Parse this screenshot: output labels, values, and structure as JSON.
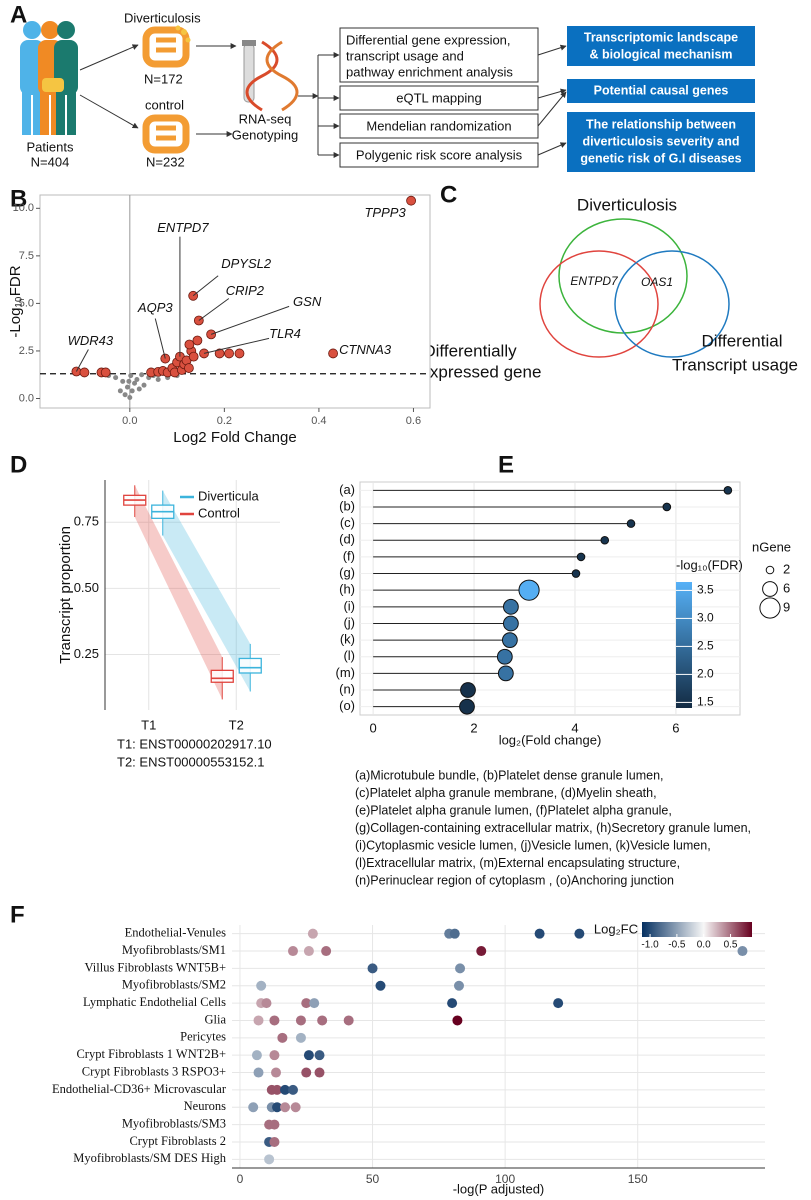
{
  "panel_labels": [
    "A",
    "B",
    "C",
    "D",
    "E",
    "F"
  ],
  "workflow": {
    "patients": {
      "label": "Patients",
      "n": "N=404"
    },
    "groups": [
      {
        "label": "Diverticulosis",
        "n": "N=172"
      },
      {
        "label": "control",
        "n": "N=232"
      }
    ],
    "assay": [
      "RNA-seq",
      "Genotyping"
    ],
    "analyses": [
      [
        "Differential gene expression,",
        "transcript usage and",
        "pathway enrichment analysis"
      ],
      [
        "eQTL mapping"
      ],
      [
        "Mendelian randomization"
      ],
      [
        "Polygenic risk score analysis"
      ]
    ],
    "outcomes": [
      [
        "Transcriptomic landscape",
        "& biological mechanism"
      ],
      [
        "Potential causal genes"
      ],
      [
        "The relationship between",
        "diverticulosis severity and",
        "genetic risk of G.I diseases"
      ]
    ]
  },
  "venn": {
    "sets": [
      [
        "Diverticulosis"
      ],
      [
        "Differentially",
        "Expressed gene"
      ],
      [
        "Differential",
        "Transcript usage"
      ]
    ],
    "genes": [
      "ENTPD7",
      "OAS1"
    ]
  },
  "chart_data": [
    {
      "type": "volcano",
      "xlabel": "Log2 Fold Change",
      "ylabel": "-Log₁₀FDR",
      "xlim": [
        -0.19,
        0.635
      ],
      "ylim": [
        -0.5,
        10.7
      ],
      "xticks": [
        {
          "value": 0,
          "label": "0.0"
        },
        0.2,
        0.4,
        0.6
      ],
      "yticks": [
        {
          "value": 0,
          "label": "0.0"
        },
        2.5,
        {
          "value": 5,
          "label": "5.0"
        },
        7.5,
        {
          "value": 10,
          "label": "10.0"
        }
      ],
      "threshold": 1.3,
      "significant": {
        "color": "#d9503f",
        "x": [
          -0.113,
          -0.096,
          -0.06,
          -0.051,
          0.045,
          0.06,
          0.07,
          0.075,
          0.08,
          0.09,
          0.095,
          0.1,
          0.106,
          0.11,
          0.115,
          0.12,
          0.125,
          0.13,
          0.135,
          0.126,
          0.143,
          0.146,
          0.134,
          0.157,
          0.172,
          0.19,
          0.21,
          0.232,
          0.43,
          0.595
        ],
        "values": [
          1.42,
          1.37,
          1.37,
          1.37,
          1.37,
          1.4,
          1.45,
          2.1,
          1.37,
          1.6,
          1.37,
          1.9,
          2.2,
          1.5,
          1.8,
          2.0,
          1.6,
          2.5,
          2.2,
          2.84,
          3.05,
          4.1,
          5.4,
          2.37,
          3.37,
          2.37,
          2.37,
          2.37,
          2.37,
          10.4
        ]
      },
      "nonsignificant": {
        "color": "#888888",
        "x": [
          -0.01,
          0,
          0.005,
          -0.005,
          0.01,
          0.015,
          -0.015,
          0.02,
          0.03,
          0.04,
          -0.03,
          -0.02,
          0.05,
          0.06,
          0.08,
          0.1,
          -0.045,
          0.025,
          0.002,
          -0.002
        ],
        "values": [
          0.2,
          0.05,
          0.4,
          0.6,
          0.8,
          1.0,
          0.9,
          0.5,
          0.7,
          1.1,
          1.1,
          0.4,
          1.2,
          1.0,
          1.1,
          1.2,
          1.2,
          1.25,
          1.2,
          0.9
        ]
      },
      "annotations": [
        {
          "text": "WDR43",
          "x": -0.113,
          "y": 1.42
        },
        {
          "text": "AQP3",
          "x": 0.075,
          "y": 2.1
        },
        {
          "text": "ENTPD7",
          "x": 0.106,
          "y": 2.2
        },
        {
          "text": "DPYSL2",
          "x": 0.134,
          "y": 5.4
        },
        {
          "text": "CRIP2",
          "x": 0.146,
          "y": 4.1
        },
        {
          "text": "GSN",
          "x": 0.172,
          "y": 3.37
        },
        {
          "text": "TLR4",
          "x": 0.157,
          "y": 2.37
        },
        {
          "text": "CTNNA3",
          "x": 0.43,
          "y": 2.37
        },
        {
          "text": "TPPP3",
          "x": 0.595,
          "y": 10.4
        }
      ]
    },
    {
      "type": "box",
      "ylabel": "Transcript proportion",
      "categories": [
        "T1",
        "T2"
      ],
      "ylim": [
        0.04,
        0.91
      ],
      "yticks": [
        0.25,
        {
          "value": 0.5,
          "label": "0.50"
        },
        0.75
      ],
      "series": [
        {
          "name": "Diverticula",
          "color": "#3cb4dc",
          "low": [
            0.7,
            0.11
          ],
          "q1": [
            0.765,
            0.18
          ],
          "median": [
            0.79,
            0.2
          ],
          "q3": [
            0.815,
            0.235
          ],
          "high": [
            0.87,
            0.29
          ]
        },
        {
          "name": "Control",
          "color": "#e0443e",
          "low": [
            0.77,
            0.08
          ],
          "q1": [
            0.815,
            0.145
          ],
          "median": [
            0.834,
            0.16
          ],
          "q3": [
            0.852,
            0.19
          ],
          "high": [
            0.89,
            0.24
          ]
        }
      ],
      "notes": [
        "T1: ENST00000202917.10",
        "T2: ENST00000553152.1"
      ]
    },
    {
      "type": "lollipop",
      "xlabel": "log₂(Fold change)",
      "categories": [
        "(a)",
        "(b)",
        "(c)",
        "(d)",
        "(f)",
        "(g)",
        "(h)",
        "(i)",
        "(j)",
        "(k)",
        "(l)",
        "(m)",
        "(n)",
        "(o)"
      ],
      "values": [
        7.03,
        5.82,
        5.11,
        4.59,
        4.12,
        4.02,
        3.09,
        2.73,
        2.73,
        2.71,
        2.61,
        2.63,
        1.88,
        1.86
      ],
      "fdr": [
        1.55,
        1.55,
        1.55,
        1.55,
        1.55,
        1.55,
        3.6,
        2.6,
        2.6,
        2.6,
        2.6,
        2.6,
        1.5,
        1.5
      ],
      "ngene": [
        2,
        2,
        2,
        2,
        2,
        2,
        9,
        6,
        6,
        6,
        6,
        6,
        6,
        6
      ],
      "xlim": [
        -0.26,
        7.27
      ],
      "xticks": [
        0,
        2,
        4,
        6
      ],
      "color_title": "-log₁₀(FDR)",
      "color_lim": [
        1.4,
        3.65
      ],
      "color_ticks": [
        1.5,
        {
          "value": 2,
          "label": "2.0"
        },
        2.5,
        {
          "value": 3,
          "label": "3.0"
        },
        3.5
      ],
      "colors": [
        "#132b43",
        "#56b1f7"
      ],
      "size_title": "nGene",
      "size_ticks": [
        2,
        6,
        9
      ],
      "notes": [
        "(a)Microtubule bundle, (b)Platelet dense granule lumen,",
        "(c)Platelet alpha granule membrane, (d)Myelin sheath,",
        "(e)Platelet alpha granule lumen, (f)Platelet alpha granule,",
        "(g)Collagen-containing extracellular matrix, (h)Secretory granule lumen,",
        "(i)Cytoplasmic vesicle lumen, (j)Vesicle lumen, (k)Vesicle lumen,",
        "(l)Extracellular matrix, (m)External encapsulating structure,",
        "(n)Perinuclear region of cytoplasm , (o)Anchoring junction"
      ]
    },
    {
      "type": "dot",
      "xlabel": "-log(P adjusted)",
      "categories": [
        "Endothelial-Venules",
        "Myofibroblasts/SM1",
        "Villus Fibroblasts WNT5B+",
        "Myofibroblasts/SM2",
        "Lymphatic Endothelial Cells",
        "Glia",
        "Pericytes",
        "Crypt Fibroblasts 1 WNT2B+",
        "Crypt Fibroblasts 3 RSPO3+",
        "Endothelial-CD36+ Microvascular",
        "Neurons",
        "Myofibroblasts/SM3",
        "Crypt Fibroblasts 2",
        "Myofibroblasts/SM DES High"
      ],
      "points": [
        {
          "x": [
            27.5,
            78.9,
            81,
            113,
            128
          ],
          "values": [
            0.3,
            -0.7,
            -0.8,
            -1.0,
            -1.0
          ]
        },
        {
          "x": [
            20,
            26,
            32.5,
            91,
            189.5
          ],
          "values": [
            0.4,
            0.3,
            0.5,
            0.8,
            -0.6
          ]
        },
        {
          "x": [
            50,
            83
          ],
          "values": [
            -0.9,
            -0.6
          ]
        },
        {
          "x": [
            8,
            53,
            82.6
          ],
          "values": [
            -0.4,
            -1.0,
            -0.6
          ]
        },
        {
          "x": [
            8,
            10,
            25,
            28,
            80,
            120
          ],
          "values": [
            0.3,
            0.4,
            0.5,
            -0.5,
            -1.0,
            -1.0
          ]
        },
        {
          "x": [
            7,
            13,
            23,
            31,
            41,
            82
          ],
          "values": [
            0.3,
            0.5,
            0.5,
            0.5,
            0.5,
            0.9
          ]
        },
        {
          "x": [
            16,
            23
          ],
          "values": [
            0.5,
            -0.4
          ]
        },
        {
          "x": [
            6.4,
            13,
            26,
            30
          ],
          "values": [
            -0.4,
            0.4,
            -1.0,
            -0.9
          ]
        },
        {
          "x": [
            7,
            13.6,
            25,
            30
          ],
          "values": [
            -0.5,
            0.4,
            0.6,
            0.6
          ]
        },
        {
          "x": [
            12,
            14,
            17,
            20
          ],
          "values": [
            0.6,
            0.6,
            -1.0,
            -0.9
          ]
        },
        {
          "x": [
            5,
            12,
            14,
            17,
            21
          ],
          "values": [
            -0.5,
            -0.6,
            -1.0,
            0.4,
            0.4
          ]
        },
        {
          "x": [
            11,
            13
          ],
          "values": [
            0.5,
            0.5
          ]
        },
        {
          "x": [
            11,
            13
          ],
          "values": [
            -0.9,
            0.5
          ]
        },
        {
          "x": [
            11
          ],
          "values": [
            -0.3
          ]
        }
      ],
      "xlim": [
        -3,
        198
      ],
      "xticks": [
        0,
        50,
        100,
        150
      ],
      "color_title": "Log₂FC",
      "color_lim": [
        -1.15,
        0.9
      ],
      "color_ticks": [
        {
          "value": -1,
          "label": "-1.0"
        },
        -0.5,
        {
          "value": 0,
          "label": "0.0"
        },
        0.5
      ],
      "colors": [
        "#053061",
        "#f7f7f7",
        "#67001f"
      ]
    }
  ]
}
